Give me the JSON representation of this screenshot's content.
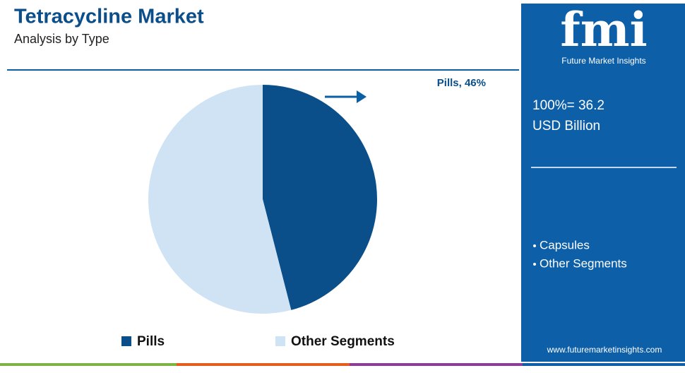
{
  "chart_data": {
    "type": "pie",
    "title": "Tetracycline Market",
    "subtitle": "Analysis by Type",
    "categories": [
      "Pills",
      "Other Segments"
    ],
    "values": [
      46,
      54
    ],
    "colors": [
      "#0b4f8a",
      "#cfe3f4"
    ],
    "annotation": "Pills, 46%"
  },
  "sidebar": {
    "logo": "fmi",
    "logo_caption": "Future Market Insights",
    "total": "100%= 36.2",
    "unit": "USD Billion",
    "bullets": [
      "Capsules",
      "Other Segments"
    ],
    "website": "www.futuremarketinsights.com"
  }
}
